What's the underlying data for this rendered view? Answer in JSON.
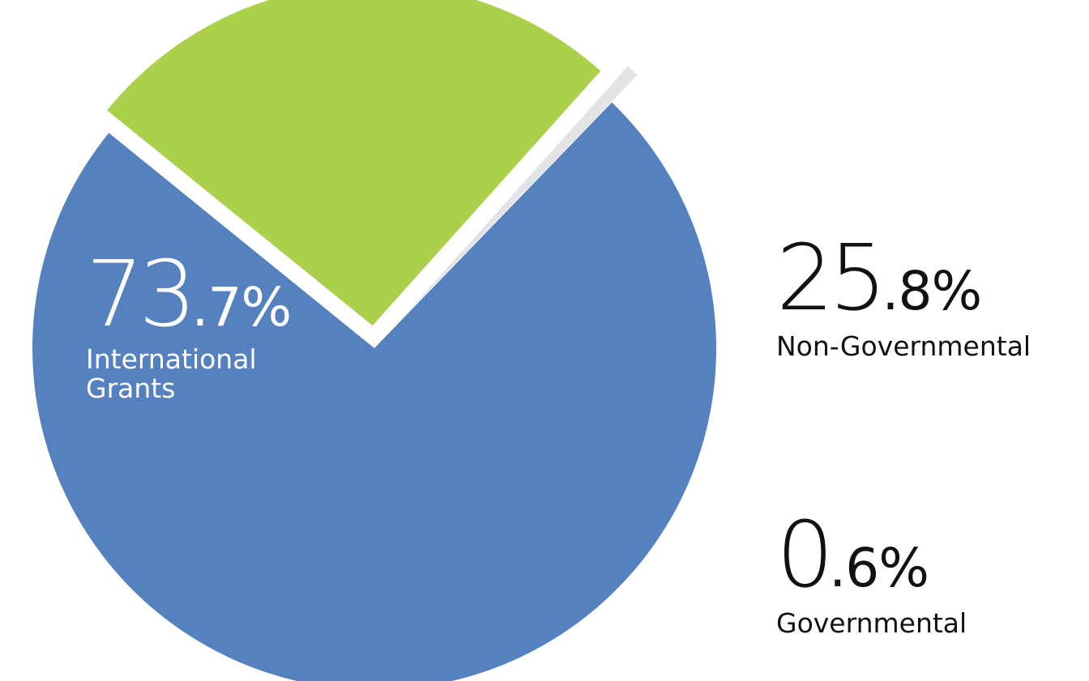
{
  "chart_data": {
    "type": "pie",
    "slices": [
      {
        "label": "International Grants",
        "value": 73.7,
        "pct_main": "73",
        "pct_dec": ".7%",
        "color": "#5581bf"
      },
      {
        "label": "Non-Governmental",
        "value": 25.8,
        "pct_main": "25",
        "pct_dec": ".8%",
        "color": "#abd04b"
      },
      {
        "label": "Governmental",
        "value": 0.6,
        "pct_main": "0",
        "pct_dec": ".6%",
        "color": "#e2e3e5"
      }
    ]
  }
}
